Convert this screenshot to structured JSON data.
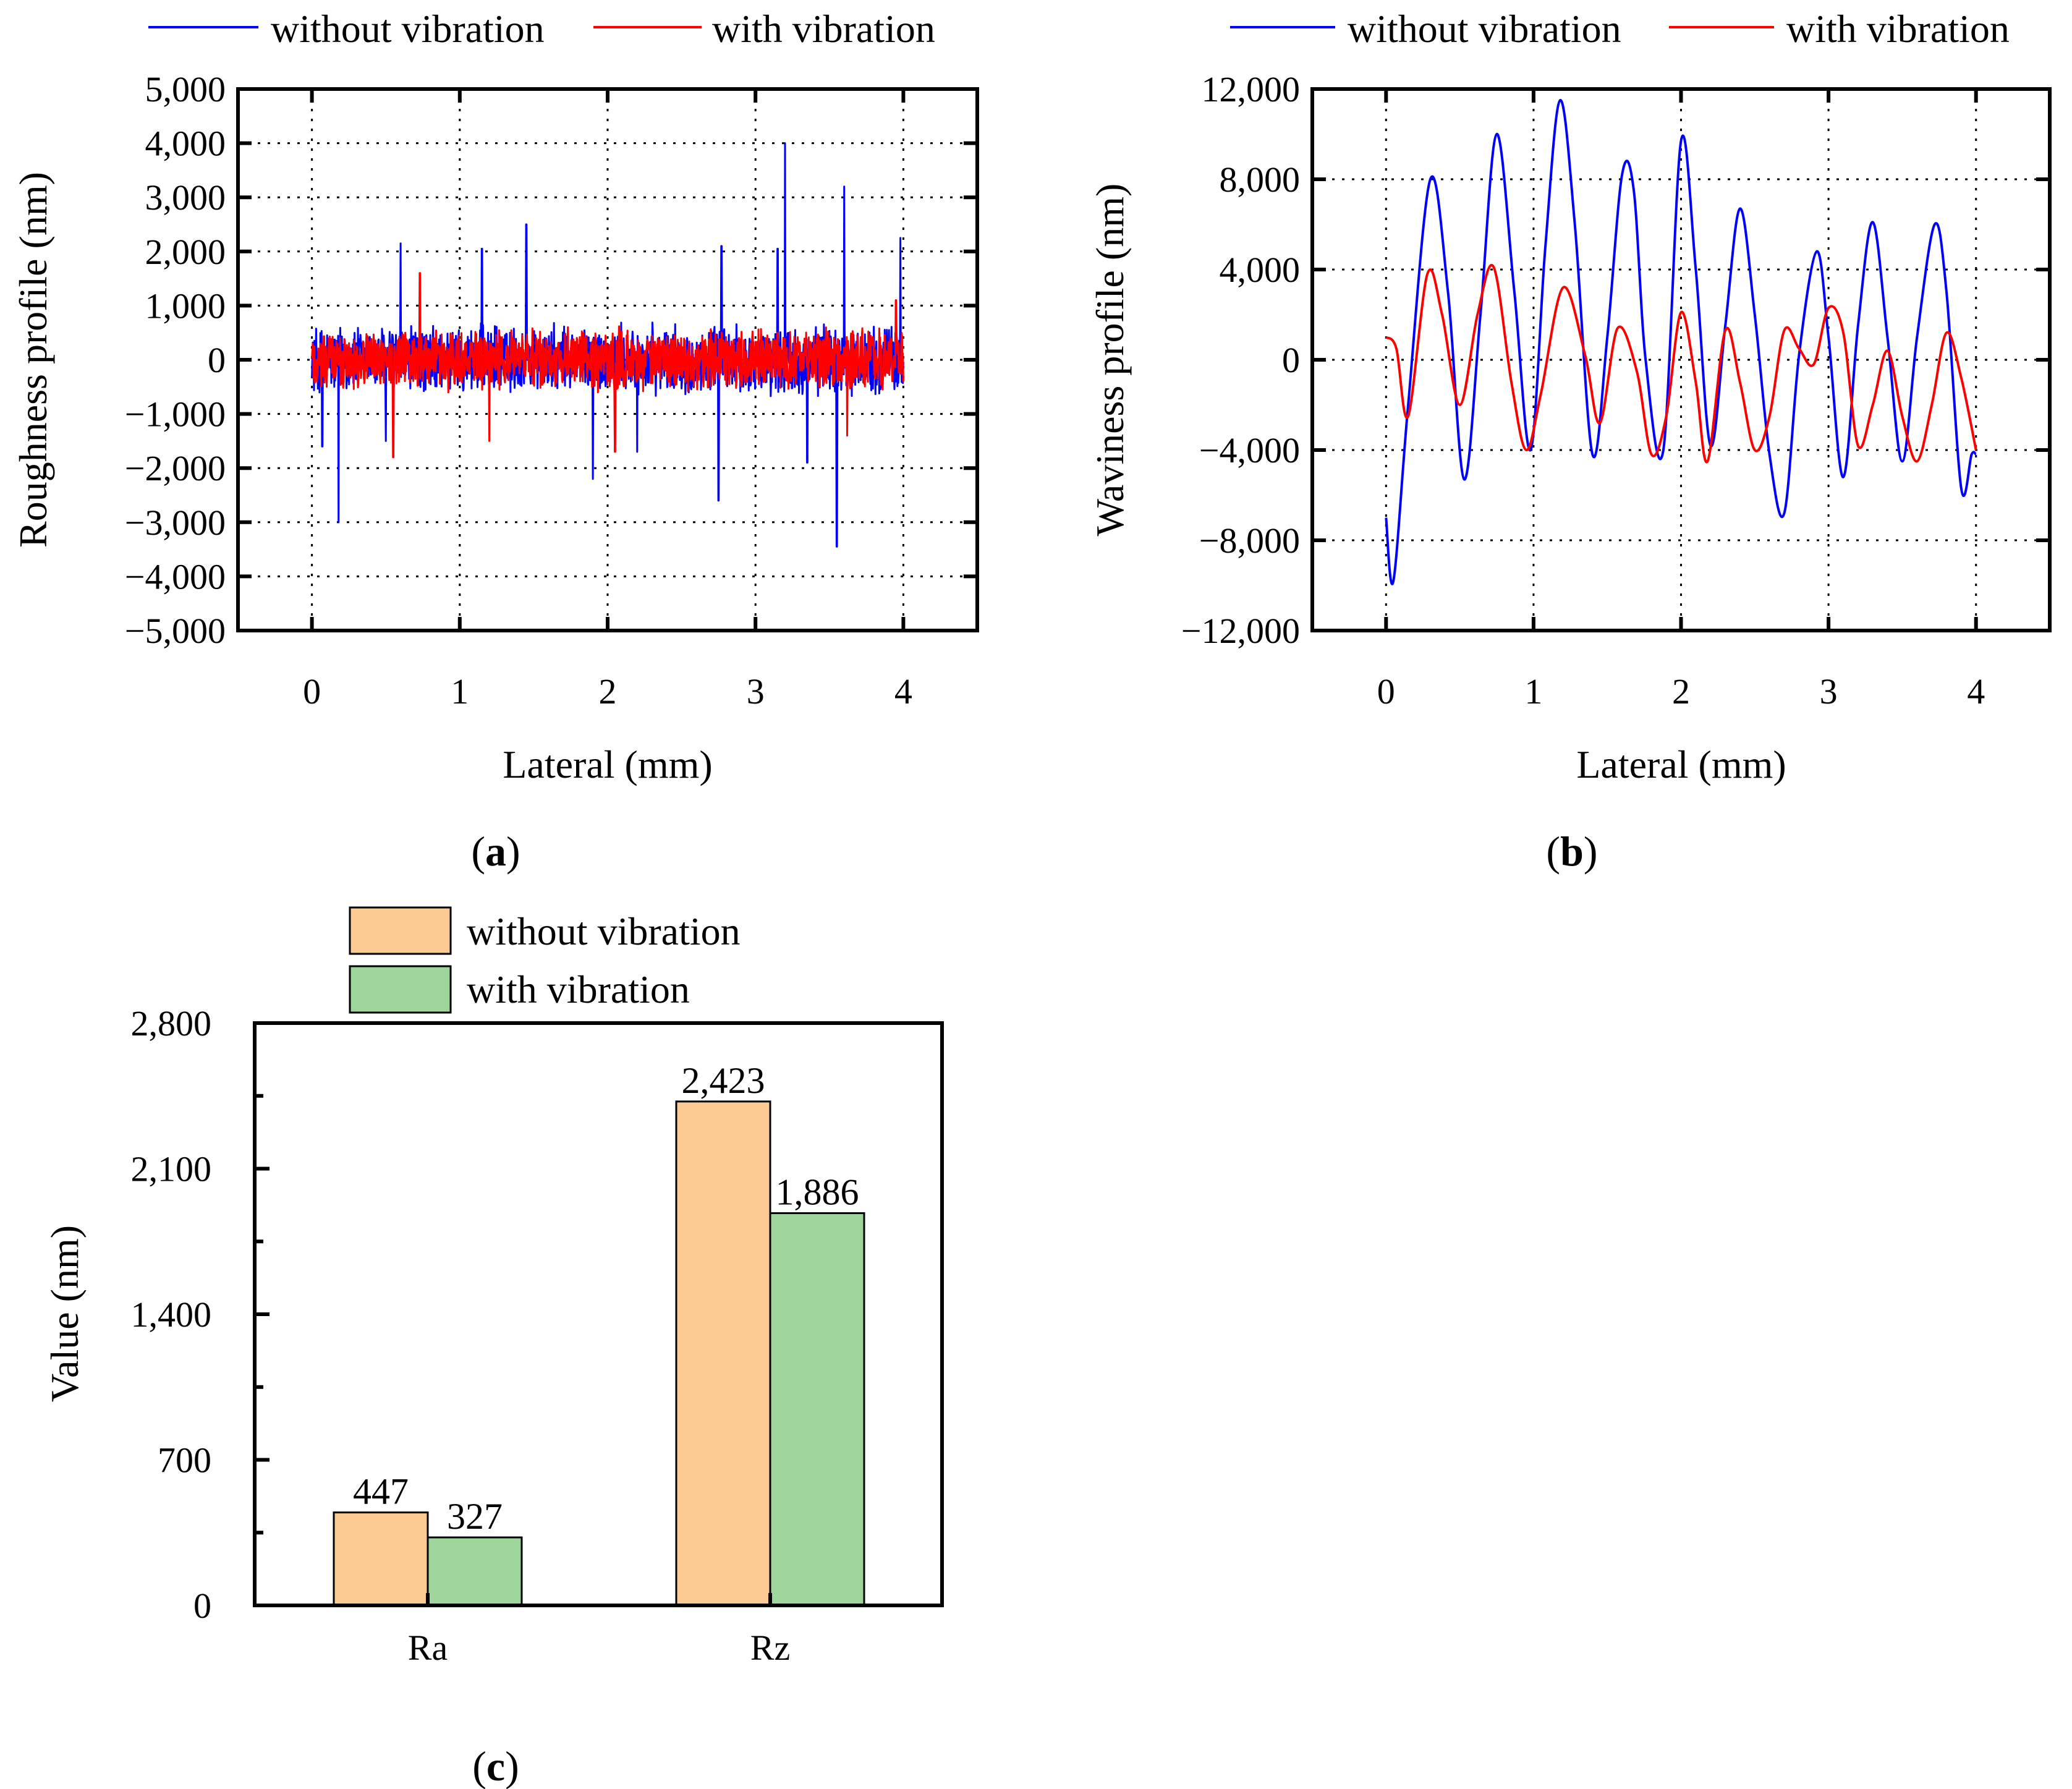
{
  "panels": {
    "a": {
      "caption_letter": "a"
    },
    "b": {
      "caption_letter": "b"
    },
    "c": {
      "caption_letter": "c"
    }
  },
  "colors": {
    "without_vibration_line": "#0000ff",
    "with_vibration_line": "#ff0000",
    "without_vibration_bar": "#fccb94",
    "with_vibration_bar": "#9dd59b"
  },
  "chart_data": [
    {
      "panel": "a",
      "type": "line",
      "title": "",
      "xlabel": "Lateral (mm)",
      "ylabel": "Roughness profile (nm)",
      "xlim": [
        -0.5,
        4.5
      ],
      "ylim": [
        -5000,
        5000
      ],
      "xticks": [
        0,
        1,
        2,
        3,
        4
      ],
      "xtick_labels": [
        "0",
        "1",
        "2",
        "3",
        "4"
      ],
      "yticks": [
        5000,
        4000,
        3000,
        2000,
        1000,
        0,
        -1000,
        -2000,
        -3000,
        -4000,
        -5000
      ],
      "ytick_labels": [
        "5,000",
        "4,000",
        "3,000",
        "2,000",
        "1,000",
        "0",
        "−1,000",
        "−2,000",
        "−3,000",
        "−4,000",
        "−5,000"
      ],
      "grid": true,
      "legend_position": "top",
      "series": [
        {
          "name": "without vibration",
          "noise_amplitude": 700,
          "spikes": [
            [
              0.18,
              -3000
            ],
            [
              0.6,
              2150
            ],
            [
              1.15,
              2050
            ],
            [
              1.45,
              2500
            ],
            [
              1.9,
              -2200
            ],
            [
              2.75,
              -2600
            ],
            [
              2.77,
              2100
            ],
            [
              3.15,
              2050
            ],
            [
              3.2,
              4000
            ],
            [
              3.55,
              -3450
            ],
            [
              3.6,
              3200
            ],
            [
              3.98,
              2250
            ],
            [
              0.07,
              -1600
            ],
            [
              0.5,
              -1500
            ],
            [
              2.2,
              -1700
            ],
            [
              3.35,
              -1900
            ]
          ]
        },
        {
          "name": "with vibration",
          "noise_amplitude": 620,
          "spikes": [
            [
              0.55,
              -1800
            ],
            [
              0.73,
              1600
            ],
            [
              1.2,
              -1500
            ],
            [
              2.05,
              -1700
            ],
            [
              3.62,
              -1400
            ],
            [
              3.95,
              1100
            ]
          ]
        }
      ]
    },
    {
      "panel": "b",
      "type": "line",
      "title": "",
      "xlabel": "Lateral (mm)",
      "ylabel": "Waviness profile (nm)",
      "xlim": [
        -0.5,
        4.5
      ],
      "ylim": [
        -12000,
        12000
      ],
      "xticks": [
        0,
        1,
        2,
        3,
        4
      ],
      "xtick_labels": [
        "0",
        "1",
        "2",
        "3",
        "4"
      ],
      "yticks": [
        12000,
        8000,
        4000,
        0,
        -4000,
        -8000,
        -12000
      ],
      "ytick_labels": [
        "12,000",
        "8,000",
        "4,000",
        "0",
        "−4,000",
        "−8,000",
        "−12,000"
      ],
      "grid": true,
      "legend_position": "top",
      "series": [
        {
          "name": "without vibration",
          "x": [
            0,
            0.05,
            0.15,
            0.3,
            0.42,
            0.53,
            0.64,
            0.75,
            0.87,
            0.98,
            1.08,
            1.18,
            1.28,
            1.4,
            1.5,
            1.6,
            1.68,
            1.76,
            1.88,
            2.0,
            2.1,
            2.2,
            2.3,
            2.4,
            2.5,
            2.6,
            2.7,
            2.8,
            2.92,
            3.0,
            3.1,
            3.2,
            3.3,
            3.4,
            3.5,
            3.6,
            3.72,
            3.8,
            3.9,
            3.97,
            4.0
          ],
          "y": [
            -7000,
            -9800,
            -2000,
            8000,
            3000,
            -5300,
            2000,
            10000,
            3000,
            -4000,
            5000,
            11500,
            6000,
            -4200,
            1000,
            8200,
            7500,
            0,
            -4000,
            9700,
            4000,
            -3800,
            1500,
            6700,
            2000,
            -4200,
            -6800,
            200,
            4800,
            1000,
            -5200,
            1500,
            6100,
            1000,
            -4500,
            1000,
            6000,
            3000,
            -5700,
            -4200,
            -4200
          ]
        },
        {
          "name": "with vibration",
          "x": [
            0,
            0.07,
            0.15,
            0.28,
            0.38,
            0.5,
            0.62,
            0.73,
            0.85,
            0.95,
            1.05,
            1.2,
            1.35,
            1.45,
            1.57,
            1.7,
            1.8,
            1.9,
            2.0,
            2.1,
            2.18,
            2.3,
            2.4,
            2.5,
            2.6,
            2.7,
            2.8,
            2.9,
            3.0,
            3.1,
            3.2,
            3.3,
            3.4,
            3.5,
            3.6,
            3.7,
            3.8,
            3.9,
            4.0
          ],
          "y": [
            1000,
            500,
            -2500,
            3800,
            2000,
            -2000,
            2000,
            4100,
            -1000,
            -4000,
            -1500,
            3200,
            200,
            -2800,
            1400,
            -500,
            -4200,
            -2500,
            2100,
            -1000,
            -4500,
            1300,
            -1000,
            -4000,
            -2500,
            1300,
            500,
            -200,
            2300,
            1200,
            -3800,
            -2000,
            400,
            -2500,
            -4500,
            -2000,
            1200,
            -800,
            -4000
          ]
        }
      ]
    },
    {
      "panel": "c",
      "type": "bar",
      "title": "",
      "xlabel": "",
      "ylabel": "Value (nm)",
      "ylim": [
        0,
        2800
      ],
      "yticks": [
        0,
        700,
        1400,
        2100,
        2800
      ],
      "ytick_labels": [
        "0",
        "700",
        "1,400",
        "2,100",
        "2,800"
      ],
      "grid": false,
      "legend_position": "top-left",
      "categories": [
        "Ra",
        "Rz"
      ],
      "series": [
        {
          "name": "without vibration",
          "values": [
            447,
            2423
          ],
          "value_labels": [
            "447",
            "2,423"
          ]
        },
        {
          "name": "with vibration",
          "values": [
            327,
            1886
          ],
          "value_labels": [
            "327",
            "1,886"
          ]
        }
      ]
    }
  ]
}
